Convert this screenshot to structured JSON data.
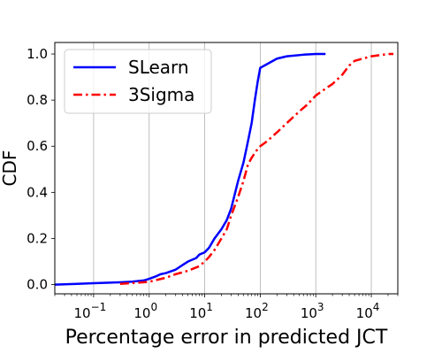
{
  "chart_data": {
    "type": "line",
    "xlabel": "Percentage error in predicted JCT",
    "ylabel": "CDF",
    "xscale": "log",
    "xlim": [
      0.02,
      30000
    ],
    "ylim": [
      -0.04,
      1.05
    ],
    "x_ticks": [
      {
        "value": 0.1,
        "base": "10",
        "exp": "−1"
      },
      {
        "value": 1,
        "base": "10",
        "exp": "0"
      },
      {
        "value": 10,
        "base": "10",
        "exp": "1"
      },
      {
        "value": 100,
        "base": "10",
        "exp": "2"
      },
      {
        "value": 1000,
        "base": "10",
        "exp": "3"
      },
      {
        "value": 10000,
        "base": "10",
        "exp": "4"
      }
    ],
    "y_ticks": [
      "0.0",
      "0.2",
      "0.4",
      "0.6",
      "0.8",
      "1.0"
    ],
    "grid": "vertical",
    "legend_position": "upper-left",
    "series": [
      {
        "name": "SLearn",
        "color": "#0000ff",
        "style": "solid",
        "points": [
          [
            0.02,
            0.0
          ],
          [
            0.05,
            0.003
          ],
          [
            0.1,
            0.006
          ],
          [
            0.3,
            0.01
          ],
          [
            0.5,
            0.013
          ],
          [
            0.8,
            0.018
          ],
          [
            1.0,
            0.025
          ],
          [
            1.3,
            0.035
          ],
          [
            1.6,
            0.045
          ],
          [
            2.0,
            0.05
          ],
          [
            3.0,
            0.065
          ],
          [
            4.0,
            0.085
          ],
          [
            5.0,
            0.1
          ],
          [
            7.0,
            0.115
          ],
          [
            8.0,
            0.13
          ],
          [
            10.0,
            0.14
          ],
          [
            12.0,
            0.16
          ],
          [
            15.0,
            0.2
          ],
          [
            20.0,
            0.24
          ],
          [
            25.0,
            0.28
          ],
          [
            30.0,
            0.33
          ],
          [
            40.0,
            0.45
          ],
          [
            50.0,
            0.53
          ],
          [
            60.0,
            0.62
          ],
          [
            70.0,
            0.7
          ],
          [
            80.0,
            0.8
          ],
          [
            90.0,
            0.88
          ],
          [
            100.0,
            0.94
          ],
          [
            130.0,
            0.955
          ],
          [
            200.0,
            0.98
          ],
          [
            300.0,
            0.99
          ],
          [
            600.0,
            0.997
          ],
          [
            1000.0,
            1.0
          ],
          [
            1500.0,
            1.0
          ]
        ]
      },
      {
        "name": "3Sigma",
        "color": "#ff0000",
        "style": "dash-dot",
        "points": [
          [
            0.3,
            0.003
          ],
          [
            0.6,
            0.008
          ],
          [
            1.0,
            0.012
          ],
          [
            2.0,
            0.03
          ],
          [
            3.0,
            0.045
          ],
          [
            5.0,
            0.06
          ],
          [
            8.0,
            0.08
          ],
          [
            10.0,
            0.1
          ],
          [
            12.0,
            0.12
          ],
          [
            15.0,
            0.15
          ],
          [
            20.0,
            0.2
          ],
          [
            25.0,
            0.24
          ],
          [
            30.0,
            0.3
          ],
          [
            40.0,
            0.38
          ],
          [
            50.0,
            0.45
          ],
          [
            60.0,
            0.52
          ],
          [
            70.0,
            0.55
          ],
          [
            85.0,
            0.58
          ],
          [
            100.0,
            0.6
          ],
          [
            130.0,
            0.62
          ],
          [
            200.0,
            0.66
          ],
          [
            300.0,
            0.7
          ],
          [
            500.0,
            0.75
          ],
          [
            700.0,
            0.78
          ],
          [
            1000.0,
            0.82
          ],
          [
            1500.0,
            0.85
          ],
          [
            2000.0,
            0.87
          ],
          [
            3000.0,
            0.91
          ],
          [
            4000.0,
            0.95
          ],
          [
            5000.0,
            0.97
          ],
          [
            7000.0,
            0.98
          ],
          [
            10000.0,
            0.99
          ],
          [
            20000.0,
            1.0
          ],
          [
            25000.0,
            1.0
          ]
        ]
      }
    ]
  }
}
